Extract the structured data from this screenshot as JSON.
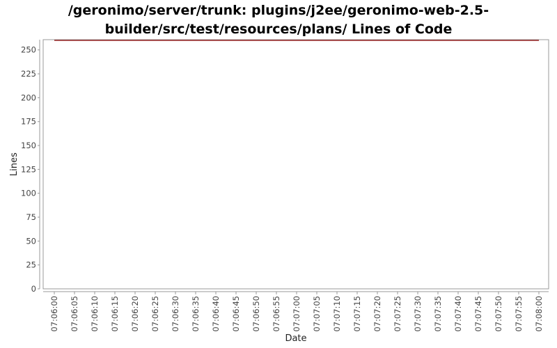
{
  "chart_data": {
    "type": "line",
    "title_lines": [
      "/geronimo/server/trunk: plugins/j2ee/geronimo-web-2.5-",
      "builder/src/test/resources/plans/ Lines of Code"
    ],
    "xlabel": "Date",
    "ylabel": "Lines",
    "ylim": [
      0,
      260
    ],
    "y_ticks": [
      0,
      25,
      50,
      75,
      100,
      125,
      150,
      175,
      200,
      225,
      250
    ],
    "x_ticks": [
      "07:06:00",
      "07:06:05",
      "07:06:10",
      "07:06:15",
      "07:06:20",
      "07:06:25",
      "07:06:30",
      "07:06:35",
      "07:06:40",
      "07:06:45",
      "07:06:50",
      "07:06:55",
      "07:07:00",
      "07:07:05",
      "07:07:10",
      "07:07:15",
      "07:07:20",
      "07:07:25",
      "07:07:30",
      "07:07:35",
      "07:07:40",
      "07:07:45",
      "07:07:50",
      "07:07:55",
      "07:08:00"
    ],
    "grid": false,
    "series": [
      {
        "color": "#8b0000",
        "points": [
          {
            "x": "07:06:00",
            "y": 260
          },
          {
            "x": "07:08:00",
            "y": 260
          }
        ]
      }
    ]
  }
}
